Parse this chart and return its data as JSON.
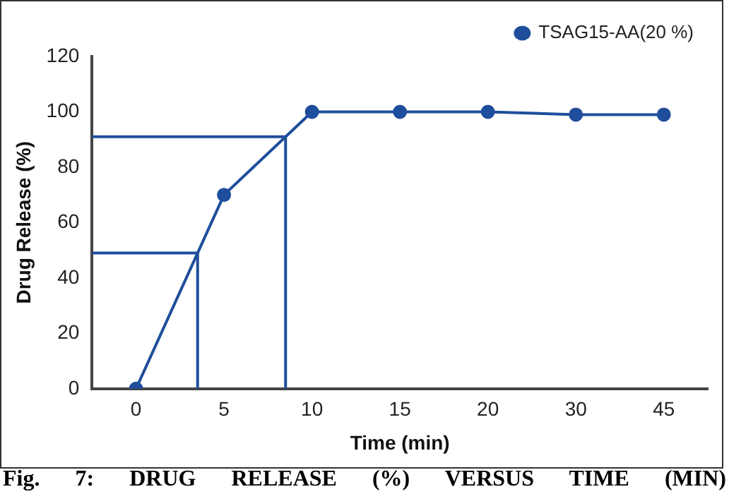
{
  "chart_data": {
    "type": "line",
    "xlabel": "Time (min)",
    "ylabel": "Drug Release (%)",
    "categories": [
      "0",
      "5",
      "10",
      "15",
      "20",
      "30",
      "45"
    ],
    "series": [
      {
        "name": "TSAG15-AA(20 %)",
        "color": "#1f4e9c",
        "values": [
          0,
          70,
          100,
          100,
          100,
          99,
          99
        ]
      }
    ],
    "ylim": [
      0,
      120
    ],
    "yticks": [
      0,
      20,
      40,
      60,
      80,
      100,
      120
    ],
    "grid": false,
    "legend": "top right",
    "marker": "circle",
    "line_style": "solid",
    "ref_lines": [
      {
        "axis": "y",
        "value": 49,
        "color": "#1f4e9c"
      },
      {
        "axis": "y",
        "value": 91,
        "color": "#1f4e9c"
      }
    ],
    "annotations": [
      "Fig. 7: DRUG RELEASE (%) VERSUS TIME (MIN)"
    ]
  }
}
